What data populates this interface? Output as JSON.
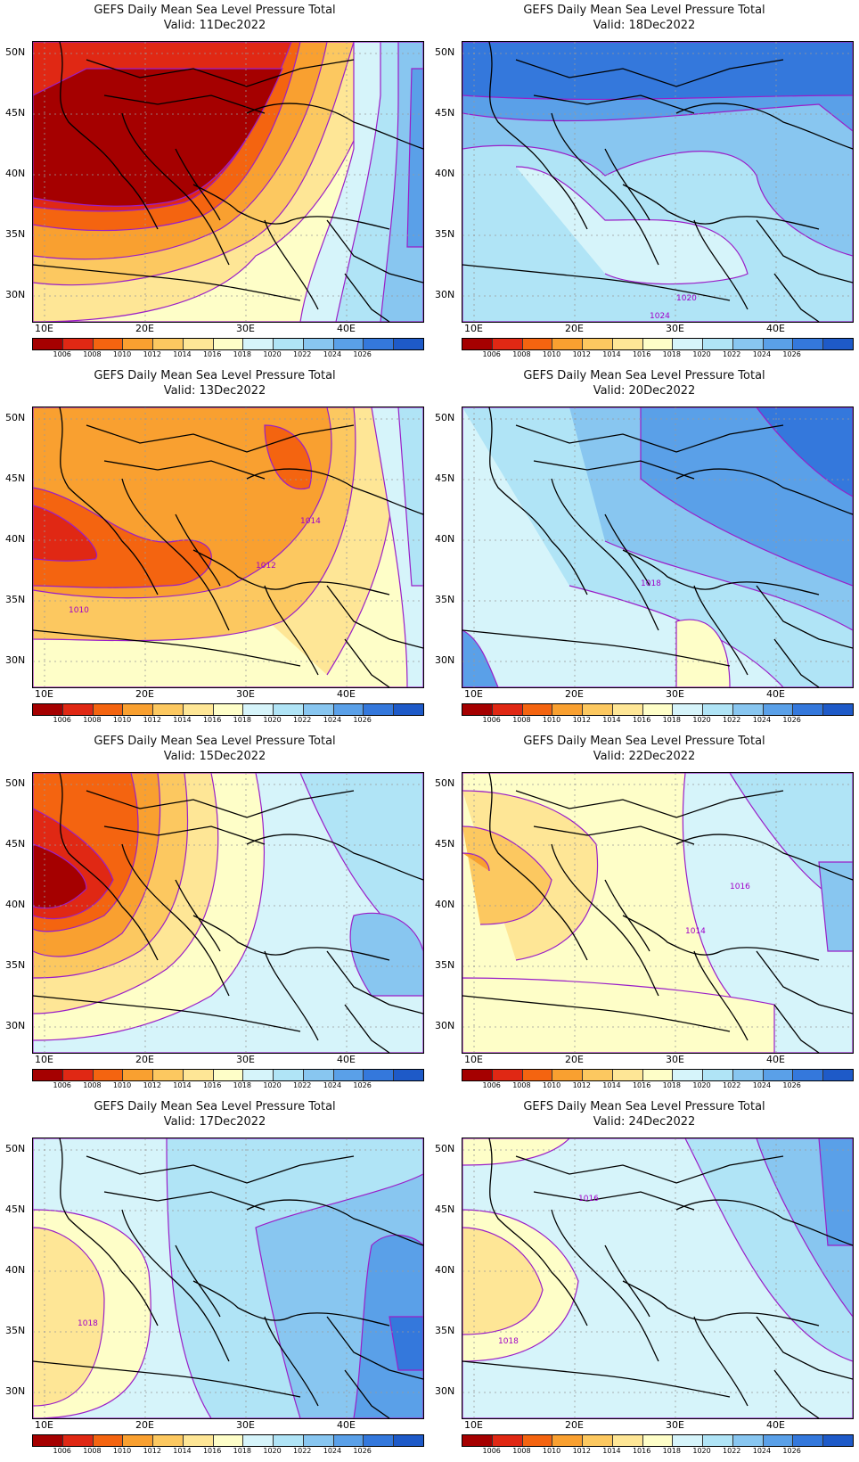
{
  "colorbar": {
    "ticks": [
      "1006",
      "1008",
      "1010",
      "1012",
      "1014",
      "1016",
      "1018",
      "1020",
      "1022",
      "1024",
      "1026"
    ],
    "colors": [
      "#a50000",
      "#e02814",
      "#f46410",
      "#f9a030",
      "#fcc860",
      "#fee696",
      "#fefec8",
      "#d6f4fa",
      "#b0e4f6",
      "#88c6f0",
      "#5aa0e8",
      "#3478dc",
      "#1e5ac8"
    ]
  },
  "axes": {
    "lat_labels": [
      "50N",
      "45N",
      "40N",
      "35N",
      "30N"
    ],
    "lon_labels": [
      "10E",
      "20E",
      "30E",
      "40E"
    ]
  },
  "panels": [
    {
      "title": "GEFS Daily Mean Sea Level Pressure Total",
      "valid": "Valid: 11Dec2022",
      "scheme": "deep_low",
      "labels": []
    },
    {
      "title": "GEFS Daily Mean Sea Level Pressure Total",
      "valid": "Valid: 18Dec2022",
      "scheme": "high",
      "labels": [
        "1024",
        "1020"
      ]
    },
    {
      "title": "GEFS Daily Mean Sea Level Pressure Total",
      "valid": "Valid: 13Dec2022",
      "scheme": "moderate_low",
      "labels": [
        "1010",
        "1012",
        "1014"
      ]
    },
    {
      "title": "GEFS Daily Mean Sea Level Pressure Total",
      "valid": "Valid: 20Dec2022",
      "scheme": "high_moderate",
      "labels": [
        "1018"
      ]
    },
    {
      "title": "GEFS Daily Mean Sea Level Pressure Total",
      "valid": "Valid: 15Dec2022",
      "scheme": "west_low",
      "labels": []
    },
    {
      "title": "GEFS Daily Mean Sea Level Pressure Total",
      "valid": "Valid: 22Dec2022",
      "scheme": "mild",
      "labels": [
        "1014",
        "1016"
      ]
    },
    {
      "title": "GEFS Daily Mean Sea Level Pressure Total",
      "valid": "Valid: 17Dec2022",
      "scheme": "east_high",
      "labels": [
        "1018"
      ]
    },
    {
      "title": "GEFS Daily Mean Sea Level Pressure Total",
      "valid": "Valid: 24Dec2022",
      "scheme": "neutral",
      "labels": [
        "1016",
        "1018"
      ]
    }
  ]
}
